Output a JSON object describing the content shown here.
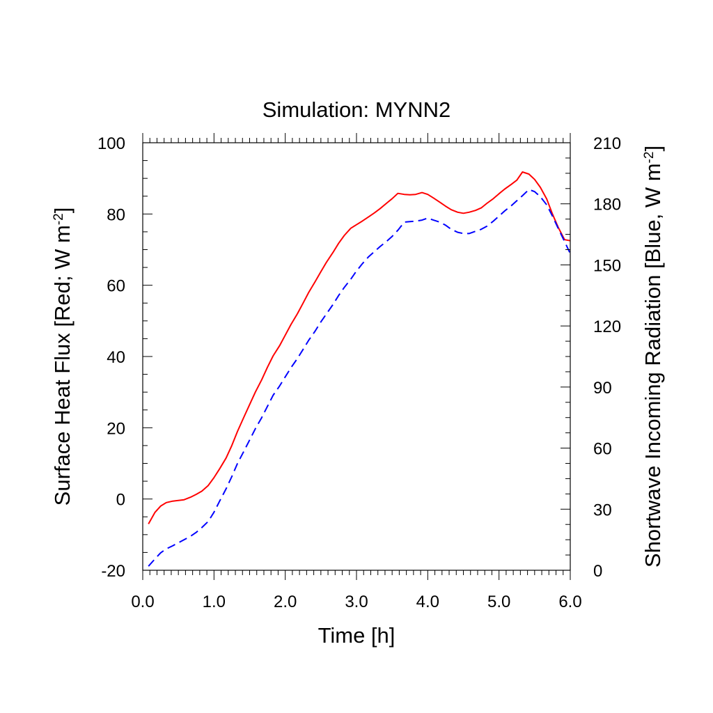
{
  "chart_data": {
    "type": "line",
    "title": "Simulation: MYNN2",
    "xlabel": "Time [h]",
    "ylabel_left": {
      "main": "Surface Heat Flux [Red; W m",
      "sup": "-2",
      "end": "]"
    },
    "ylabel_right": {
      "main": "Shortwave Incoming Radiation [Blue, W m",
      "sup": "-2",
      "end": "]"
    },
    "xlim": [
      0,
      6
    ],
    "ylim_left": [
      -20,
      100
    ],
    "ylim_right": [
      0,
      210
    ],
    "xticks": [
      "0.0",
      "1.0",
      "2.0",
      "3.0",
      "4.0",
      "5.0",
      "6.0"
    ],
    "yticks_left": [
      "-20",
      "0",
      "20",
      "40",
      "60",
      "80",
      "100"
    ],
    "yticks_right": [
      "0",
      "30",
      "60",
      "90",
      "120",
      "150",
      "180",
      "210"
    ],
    "series": [
      {
        "axis": "left",
        "color": "#ff0000",
        "dash": "solid",
        "x": [
          0.08,
          0.17,
          0.25,
          0.33,
          0.42,
          0.5,
          0.58,
          0.67,
          0.75,
          0.83,
          0.92,
          1.0,
          1.08,
          1.17,
          1.25,
          1.33,
          1.42,
          1.5,
          1.58,
          1.67,
          1.75,
          1.83,
          1.92,
          2.0,
          2.08,
          2.17,
          2.25,
          2.33,
          2.42,
          2.5,
          2.58,
          2.67,
          2.75,
          2.83,
          2.92,
          3.0,
          3.08,
          3.17,
          3.25,
          3.33,
          3.42,
          3.5,
          3.58,
          3.67,
          3.75,
          3.83,
          3.92,
          4.0,
          4.08,
          4.17,
          4.25,
          4.33,
          4.42,
          4.5,
          4.58,
          4.67,
          4.75,
          4.83,
          4.92,
          5.0,
          5.08,
          5.17,
          5.25,
          5.33,
          5.42,
          5.5,
          5.58,
          5.67,
          5.75,
          5.83,
          5.92,
          6.0
        ],
        "values": [
          -7,
          -3.8,
          -2,
          -1,
          -0.6,
          -0.4,
          -0.2,
          0.5,
          1.3,
          2.2,
          3.8,
          6,
          8.5,
          11.5,
          15,
          19,
          23,
          26.5,
          30,
          33.5,
          37,
          40.2,
          43,
          46,
          49,
          52,
          55,
          58,
          61,
          63.8,
          66.5,
          69.2,
          71.8,
          74,
          76,
          77,
          78,
          79.2,
          80.3,
          81.5,
          83,
          84.3,
          85.8,
          85.5,
          85.4,
          85.5,
          86,
          85.5,
          84.5,
          83.3,
          82.2,
          81.2,
          80.5,
          80.2,
          80.5,
          81,
          81.7,
          83,
          84.3,
          85.7,
          87,
          88.3,
          89.5,
          91.8,
          91.2,
          89.7,
          87.5,
          84.2,
          80,
          76.3,
          72.8,
          72.5
        ]
      },
      {
        "axis": "right",
        "color": "#0000ff",
        "dash": "dashed",
        "x": [
          0.08,
          0.17,
          0.25,
          0.33,
          0.42,
          0.5,
          0.58,
          0.67,
          0.75,
          0.83,
          0.92,
          1.0,
          1.08,
          1.17,
          1.25,
          1.33,
          1.42,
          1.5,
          1.58,
          1.67,
          1.75,
          1.83,
          1.92,
          2.0,
          2.08,
          2.17,
          2.25,
          2.33,
          2.42,
          2.5,
          2.58,
          2.67,
          2.75,
          2.83,
          2.92,
          3.0,
          3.08,
          3.17,
          3.25,
          3.33,
          3.42,
          3.5,
          3.58,
          3.67,
          3.75,
          3.83,
          3.92,
          4.0,
          4.08,
          4.17,
          4.25,
          4.33,
          4.42,
          4.5,
          4.58,
          4.67,
          4.75,
          4.83,
          4.92,
          5.0,
          5.08,
          5.17,
          5.25,
          5.33,
          5.42,
          5.5,
          5.58,
          5.67,
          5.75,
          5.83,
          5.92,
          6.0
        ],
        "values": [
          2,
          5.5,
          8.5,
          10.5,
          12,
          13.5,
          15,
          16.7,
          18.6,
          21,
          24,
          28.5,
          34,
          40,
          46,
          52.5,
          58.5,
          64,
          69.5,
          75,
          80.5,
          86,
          90.5,
          95,
          99.5,
          104,
          108.5,
          113,
          117.5,
          122,
          126,
          130.5,
          135,
          139,
          143,
          147,
          150.5,
          154,
          156.5,
          159,
          161.5,
          164,
          167,
          171,
          171.3,
          171.5,
          172,
          173,
          172,
          171,
          169.5,
          167.5,
          166,
          165.4,
          165.4,
          166.5,
          167.5,
          169,
          171.5,
          174,
          176.5,
          179,
          181.5,
          184,
          187,
          186,
          183.5,
          179.5,
          174,
          168,
          161.5,
          155.5
        ]
      }
    ]
  }
}
